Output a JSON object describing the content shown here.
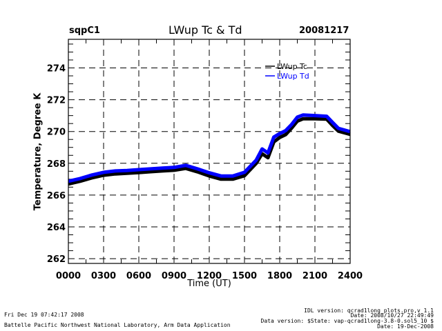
{
  "header": {
    "site": "sqpC1",
    "title": "LWup Tc & Td",
    "date": "20081217"
  },
  "footer": {
    "left_line1": "Fri Dec 19 07:42:17 2008",
    "left_line2": "Battelle Pacific Northwest National Laboratory, Arm Data Application",
    "right_line1": "IDL version: qcrad1long_plots.pro,v 1.1",
    "right_line2": "Date: 2008/10/27 22:49:49",
    "right_line3": "Data version: $State: vap-qcrad1long-3.8-0.sol5_10 $",
    "right_line4": "Date: 19-Dec-2008"
  },
  "colors": {
    "tc": "#000000",
    "td": "#0000ff"
  },
  "chart_data": {
    "type": "line",
    "title": "LWup Tc & Td",
    "xlabel": "Time (UT)",
    "ylabel": "Temperature, Degree K",
    "xlim": [
      0,
      24
    ],
    "ylim": [
      261.7,
      275.8
    ],
    "grid": true,
    "legend_position": "top-right",
    "x_ticks": [
      0,
      3,
      6,
      9,
      12,
      15,
      18,
      21,
      24
    ],
    "x_tick_labels": [
      "0000",
      "0300",
      "0600",
      "0900",
      "1200",
      "1500",
      "1800",
      "2100",
      "2400"
    ],
    "y_ticks": [
      262,
      264,
      266,
      268,
      270,
      272,
      274
    ],
    "y_tick_labels": [
      "262",
      "264",
      "266",
      "268",
      "270",
      "272",
      "274"
    ],
    "series": [
      {
        "name": "LWup Tc",
        "color": "#000000",
        "x": [
          0,
          1,
          2,
          3,
          4,
          5,
          6,
          7,
          8,
          9,
          10,
          11,
          12,
          13,
          14,
          15,
          16,
          16.5,
          17,
          17.5,
          18,
          18.5,
          19,
          19.5,
          20,
          21,
          22,
          22.5,
          23,
          24
        ],
        "y": [
          266.7,
          266.87,
          267.08,
          267.25,
          267.33,
          267.37,
          267.42,
          267.47,
          267.52,
          267.56,
          267.68,
          267.46,
          267.2,
          267.0,
          267.0,
          267.22,
          268.0,
          268.6,
          268.35,
          269.35,
          269.62,
          269.8,
          270.2,
          270.65,
          270.8,
          270.8,
          270.78,
          270.38,
          270.02,
          269.82
        ]
      },
      {
        "name": "LWup Td",
        "color": "#0000ff",
        "x": [
          0,
          1,
          2,
          3,
          4,
          5,
          6,
          7,
          8,
          9,
          10,
          11,
          12,
          13,
          14,
          15,
          16,
          16.5,
          17,
          17.5,
          18,
          18.5,
          19,
          19.5,
          20,
          21,
          22,
          22.5,
          23,
          24
        ],
        "y": [
          266.87,
          267.04,
          267.26,
          267.43,
          267.52,
          267.55,
          267.6,
          267.65,
          267.7,
          267.74,
          267.87,
          267.65,
          267.4,
          267.2,
          267.2,
          267.43,
          268.2,
          268.9,
          268.65,
          269.65,
          269.87,
          270.05,
          270.43,
          270.9,
          271.04,
          271.0,
          270.96,
          270.57,
          270.2,
          269.99
        ]
      }
    ]
  }
}
